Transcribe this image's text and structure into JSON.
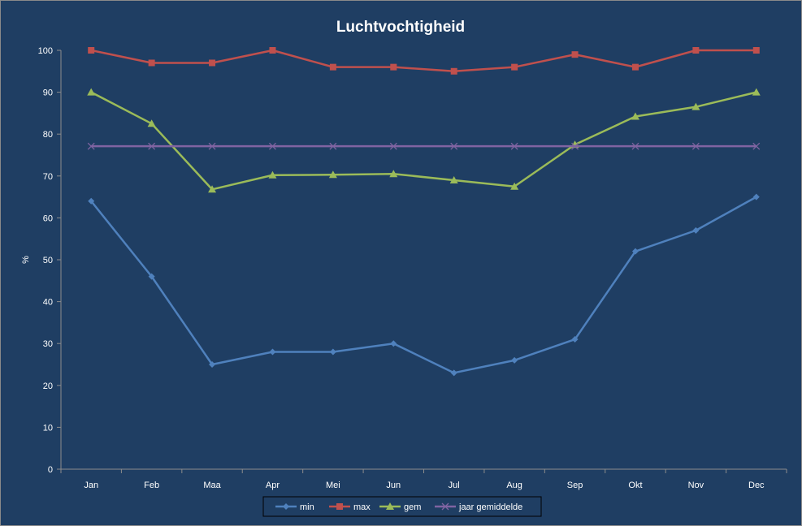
{
  "chart_data": {
    "type": "line",
    "title": "Luchtvochtigheid",
    "xlabel": "",
    "ylabel": "%",
    "ylim": [
      0,
      100
    ],
    "yticks": [
      0,
      10,
      20,
      30,
      40,
      50,
      60,
      70,
      80,
      90,
      100
    ],
    "categories": [
      "Jan",
      "Feb",
      "Maa",
      "Apr",
      "Mei",
      "Jun",
      "Jul",
      "Aug",
      "Sep",
      "Okt",
      "Nov",
      "Dec"
    ],
    "grid": false,
    "legend": "bottom",
    "series": [
      {
        "name": "min",
        "color": "#4f81bd",
        "marker": "diamond",
        "values": [
          64,
          46,
          25,
          28,
          28,
          30,
          23,
          26,
          31,
          52,
          57,
          65
        ]
      },
      {
        "name": "max",
        "color": "#c0504d",
        "marker": "square",
        "values": [
          100,
          97,
          97,
          100,
          96,
          96,
          95,
          96,
          99,
          96,
          100,
          100
        ]
      },
      {
        "name": "gem",
        "color": "#9bbb59",
        "marker": "triangle",
        "values": [
          90,
          82.5,
          66.8,
          70.2,
          70.3,
          70.5,
          69,
          67.5,
          77.5,
          84.2,
          86.5,
          90
        ]
      },
      {
        "name": "jaar gemiddelde",
        "color": "#8064a2",
        "marker": "x",
        "values": [
          77.1,
          77.1,
          77.1,
          77.1,
          77.1,
          77.1,
          77.1,
          77.1,
          77.1,
          77.1,
          77.1,
          77.1
        ]
      }
    ]
  }
}
